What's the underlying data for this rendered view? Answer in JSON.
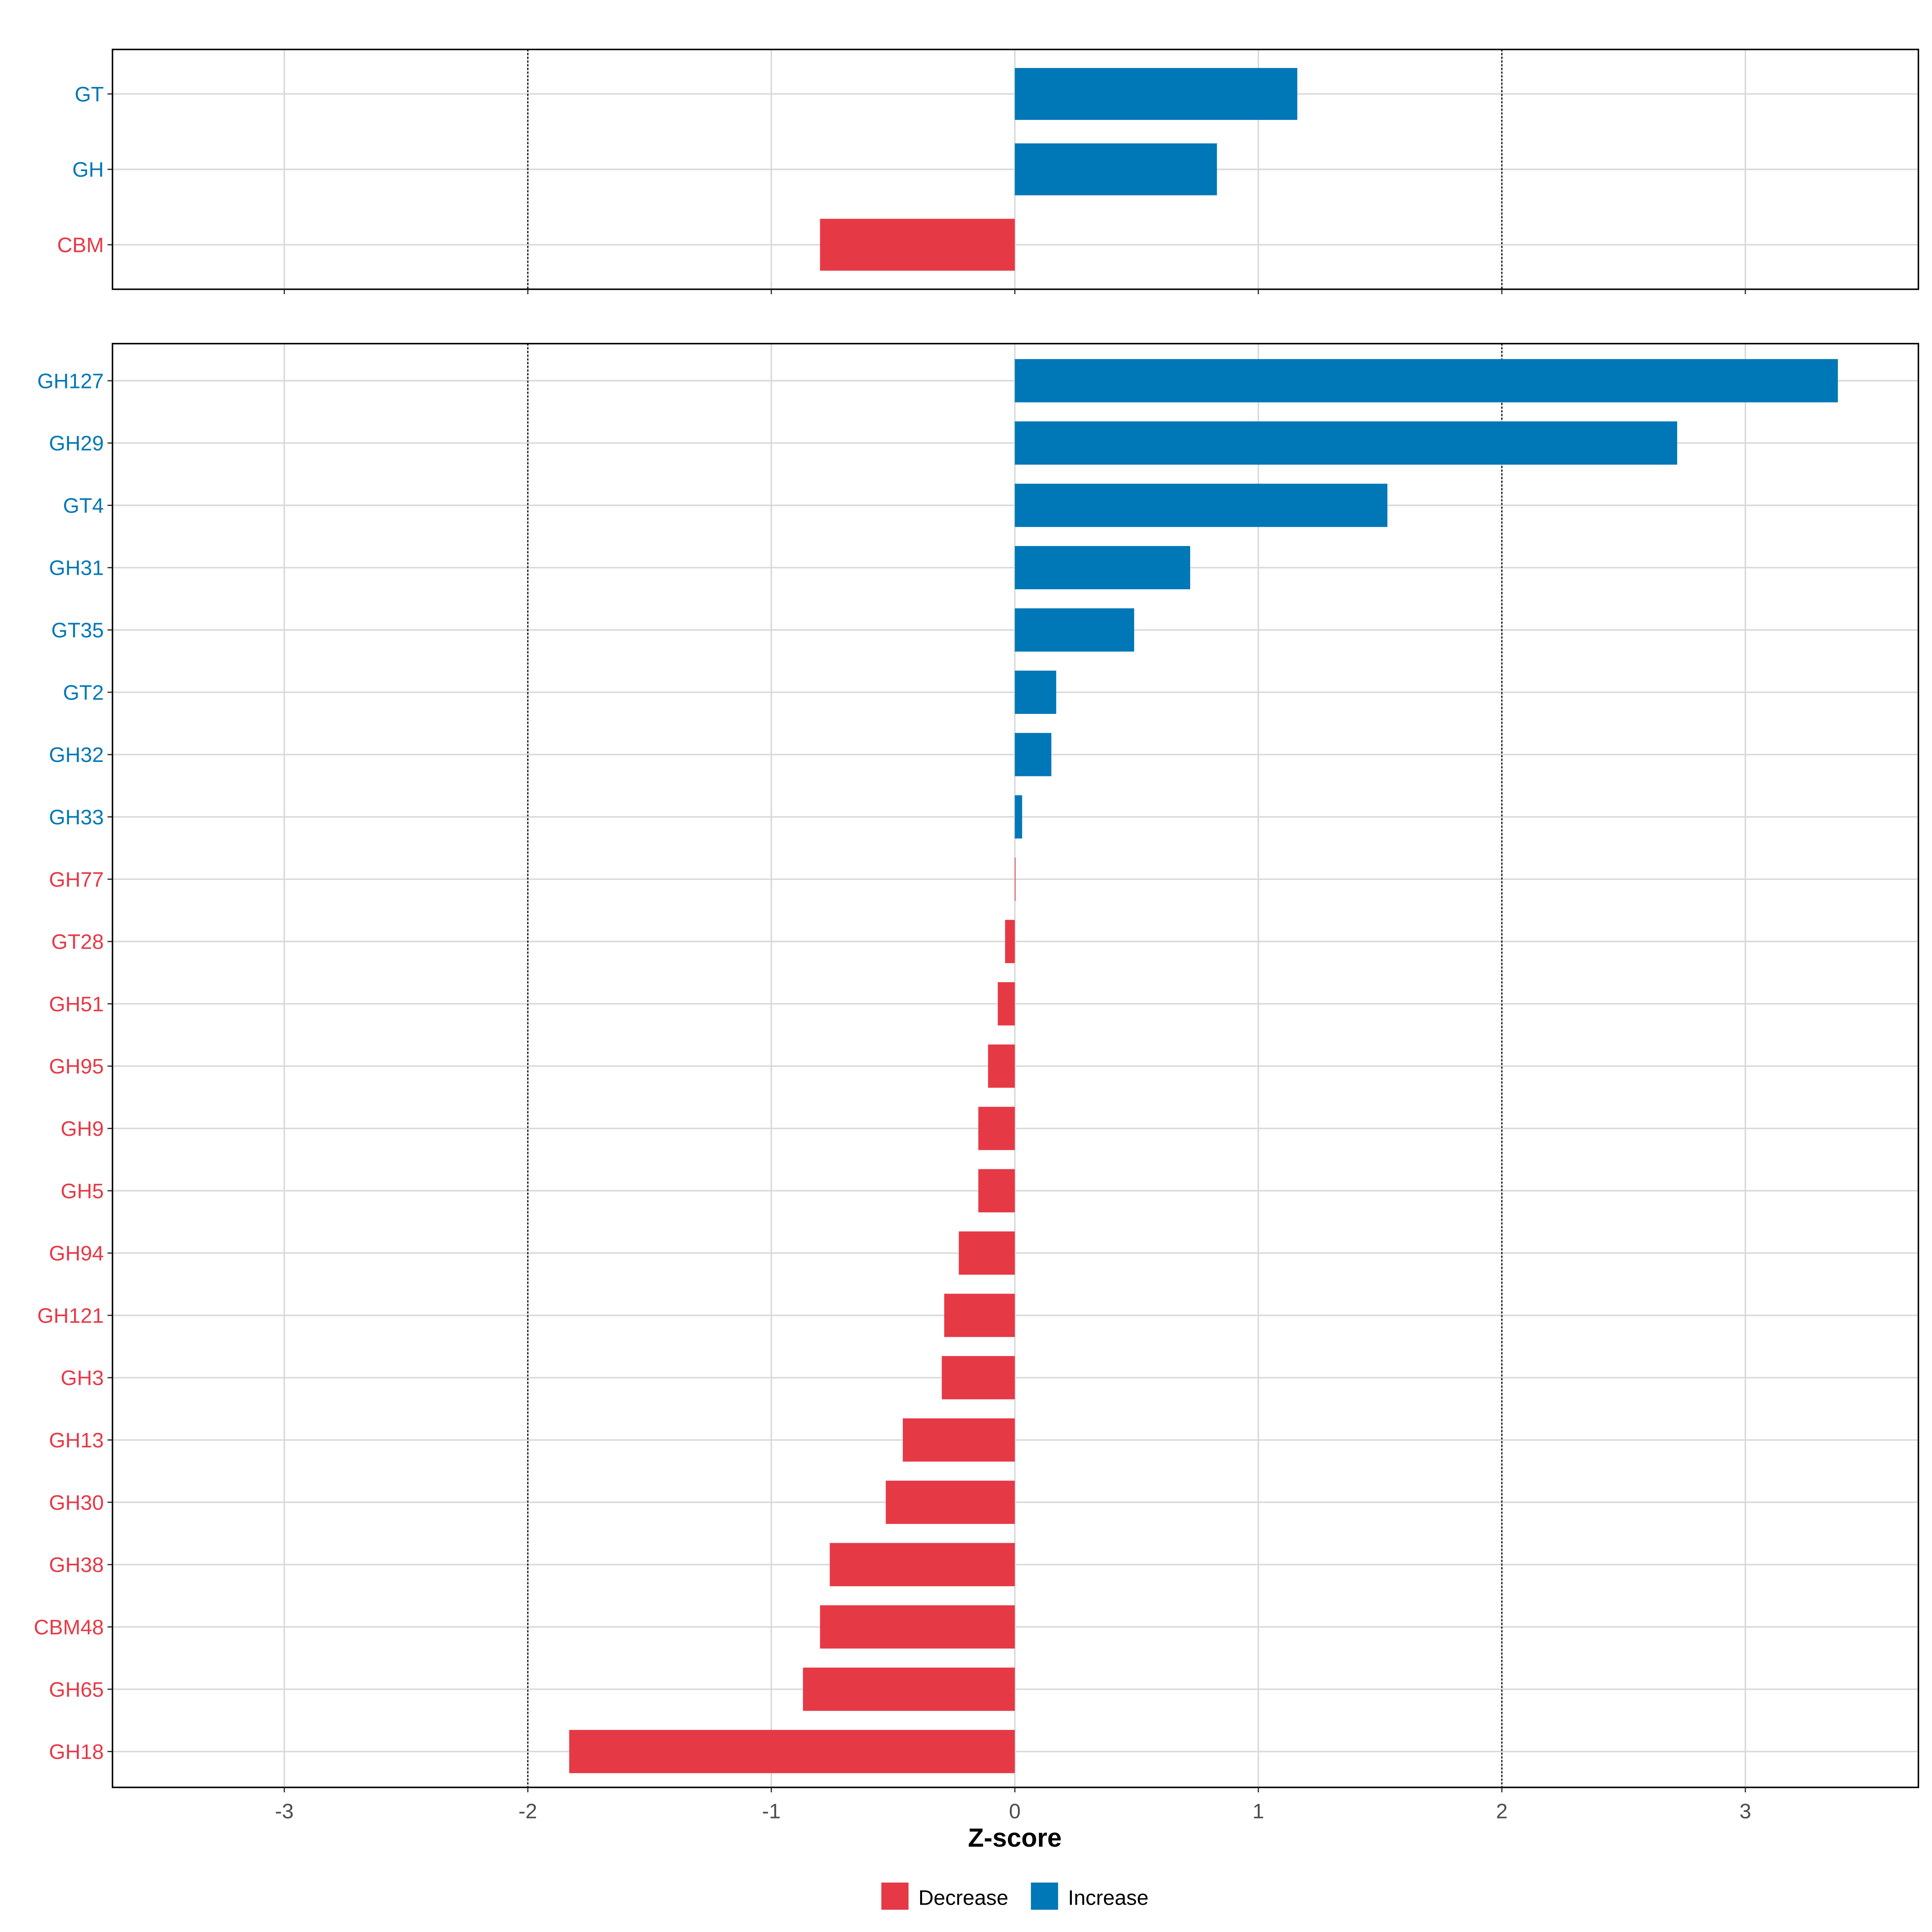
{
  "chart_data": [
    {
      "type": "bar",
      "orientation": "horizontal",
      "panel": "top",
      "categories": [
        "GT",
        "GH",
        "CBM"
      ],
      "values": [
        1.16,
        0.83,
        -0.8
      ],
      "xlim": [
        -3.7,
        3.7
      ],
      "reference_lines": [
        -2,
        2
      ],
      "grid": true
    },
    {
      "type": "bar",
      "orientation": "horizontal",
      "panel": "bottom",
      "categories": [
        "GH127",
        "GH29",
        "GT4",
        "GH31",
        "GT35",
        "GT2",
        "GH32",
        "GH33",
        "GH77",
        "GT28",
        "GH51",
        "GH95",
        "GH9",
        "GH5",
        "GH94",
        "GH121",
        "GH3",
        "GH13",
        "GH30",
        "GH38",
        "CBM48",
        "GH65",
        "GH18"
      ],
      "values": [
        3.38,
        2.72,
        1.53,
        0.72,
        0.49,
        0.17,
        0.15,
        0.03,
        0.002,
        -0.04,
        -0.07,
        -0.11,
        -0.15,
        -0.15,
        -0.23,
        -0.29,
        -0.3,
        -0.46,
        -0.53,
        -0.76,
        -0.8,
        -0.87,
        -1.83
      ],
      "xlim": [
        -3.7,
        3.7
      ],
      "xticks": [
        -3,
        -2,
        -1,
        0,
        1,
        2,
        3
      ],
      "xtick_labels": [
        "-3",
        "-2",
        "-1",
        "0",
        "1",
        "2",
        "3"
      ],
      "xlabel": "Z-score",
      "reference_lines": [
        -2,
        2
      ],
      "grid": true
    }
  ],
  "legend": {
    "placement": "bottom",
    "items": [
      {
        "label": "Decrease",
        "color": "#E63946"
      },
      {
        "label": "Increase",
        "color": "#0077B6"
      }
    ]
  }
}
